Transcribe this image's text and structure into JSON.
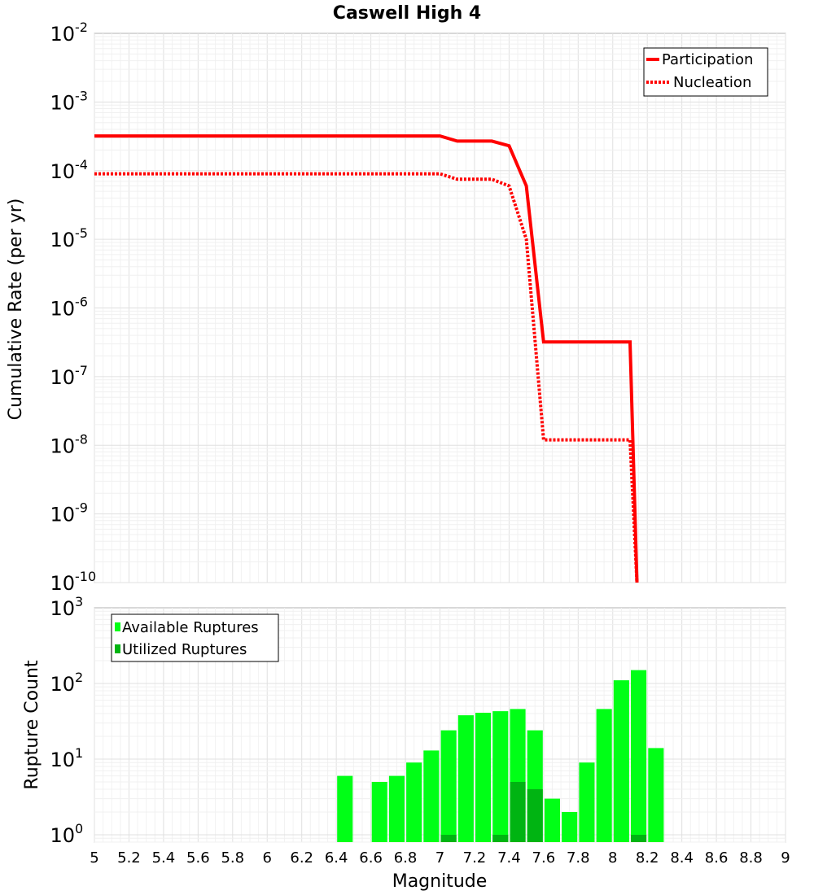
{
  "chart_data": [
    {
      "type": "line",
      "title": "Caswell High 4",
      "xlabel": "",
      "ylabel": "Cumulative Rate (per yr)",
      "xlim": [
        5,
        9
      ],
      "ylim": [
        1e-10,
        0.01
      ],
      "yscale": "log",
      "yticks": [
        {
          "base": "10",
          "exp": "-2",
          "value": 0.01
        },
        {
          "base": "10",
          "exp": "-3",
          "value": 0.001
        },
        {
          "base": "10",
          "exp": "-4",
          "value": 0.0001
        },
        {
          "base": "10",
          "exp": "-5",
          "value": 1e-05
        },
        {
          "base": "10",
          "exp": "-6",
          "value": 1e-06
        },
        {
          "base": "10",
          "exp": "-7",
          "value": 1e-07
        },
        {
          "base": "10",
          "exp": "-8",
          "value": 1e-08
        },
        {
          "base": "10",
          "exp": "-9",
          "value": 1e-09
        },
        {
          "base": "10",
          "exp": "-10",
          "value": 1e-10
        }
      ],
      "grid": true,
      "legend_position": "top-right",
      "series": [
        {
          "name": "Participation",
          "color": "#ff0000",
          "style": "solid",
          "x": [
            5.0,
            7.0,
            7.1,
            7.3,
            7.4,
            7.5,
            7.6,
            8.1,
            8.14
          ],
          "y": [
            0.00032,
            0.00032,
            0.00027,
            0.00027,
            0.00023,
            6e-05,
            3.2e-07,
            3.2e-07,
            1e-10
          ]
        },
        {
          "name": "Nucleation",
          "color": "#ff0000",
          "style": "dotted",
          "x": [
            5.0,
            7.0,
            7.1,
            7.3,
            7.4,
            7.5,
            7.6,
            8.1,
            8.14
          ],
          "y": [
            9e-05,
            9e-05,
            7.5e-05,
            7.5e-05,
            6e-05,
            1e-05,
            1.2e-08,
            1.2e-08,
            1e-10
          ]
        }
      ]
    },
    {
      "type": "bar",
      "title": "",
      "xlabel": "Magnitude",
      "ylabel": "Rupture Count",
      "xlim": [
        5,
        9
      ],
      "ylim": [
        0.8,
        1000
      ],
      "yscale": "log",
      "xticks": [
        "5",
        "5.2",
        "5.4",
        "5.6",
        "5.8",
        "6",
        "6.2",
        "6.4",
        "6.6",
        "6.8",
        "7",
        "7.2",
        "7.4",
        "7.6",
        "7.8",
        "8",
        "8.2",
        "8.4",
        "8.6",
        "8.8",
        "9"
      ],
      "yticks": [
        {
          "base": "10",
          "exp": "3",
          "value": 1000
        },
        {
          "base": "10",
          "exp": "2",
          "value": 100
        },
        {
          "base": "10",
          "exp": "1",
          "value": 10
        },
        {
          "base": "10",
          "exp": "0",
          "value": 1
        }
      ],
      "grid": true,
      "legend_position": "top-left",
      "bar_width": 0.09,
      "series": [
        {
          "name": "Available Ruptures",
          "color": "#00ff16",
          "x": [
            6.45,
            6.65,
            6.75,
            6.85,
            6.95,
            7.05,
            7.15,
            7.25,
            7.35,
            7.45,
            7.55,
            7.65,
            7.75,
            7.85,
            7.95,
            8.05,
            8.15,
            8.25
          ],
          "values": [
            6,
            5,
            6,
            9,
            13,
            24,
            38,
            41,
            43,
            46,
            24,
            3,
            2,
            9,
            46,
            110,
            150,
            14
          ]
        },
        {
          "name": "Utilized Ruptures",
          "color": "#00b412",
          "x": [
            7.05,
            7.35,
            7.45,
            7.55,
            8.15
          ],
          "values": [
            1,
            1,
            5,
            4,
            1
          ]
        }
      ]
    }
  ]
}
